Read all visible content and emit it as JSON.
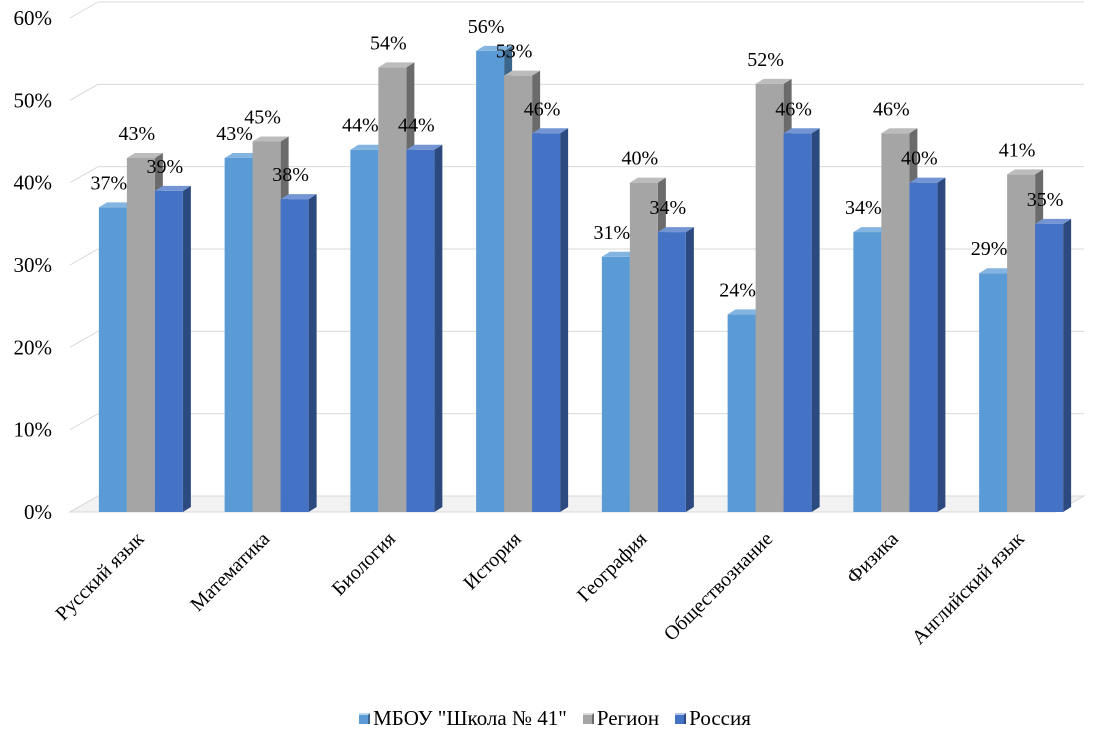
{
  "chart_data": {
    "type": "bar",
    "categories": [
      "Русский язык",
      "Математика",
      "Биология",
      "История",
      "География",
      "Обществознание",
      "Физика",
      "Английский язык"
    ],
    "series": [
      {
        "name": "МБОУ \"Школа № 41\"",
        "values": [
          37,
          43,
          44,
          56,
          31,
          24,
          34,
          29
        ],
        "color": "#5B9BD5"
      },
      {
        "name": "Регион",
        "values": [
          43,
          45,
          54,
          53,
          40,
          52,
          46,
          41
        ],
        "color": "#A5A5A5"
      },
      {
        "name": "Россия",
        "values": [
          39,
          38,
          44,
          46,
          34,
          46,
          40,
          35
        ],
        "color": "#4472C4"
      }
    ],
    "data_labels": [
      [
        "37%",
        "43%",
        "44%",
        "56%",
        "31%",
        "24%",
        "34%",
        "29%"
      ],
      [
        "43%",
        "45%",
        "54%",
        "53%",
        "40%",
        "52%",
        "46%",
        "41%"
      ],
      [
        "39%",
        "38%",
        "44%",
        "46%",
        "34%",
        "46%",
        "40%",
        "35%"
      ]
    ],
    "yticks": [
      "0%",
      "10%",
      "20%",
      "30%",
      "40%",
      "50%",
      "60%"
    ],
    "ylim": [
      0,
      60
    ],
    "grid": true,
    "legend_position": "bottom",
    "style": "3d-clustered-column"
  }
}
